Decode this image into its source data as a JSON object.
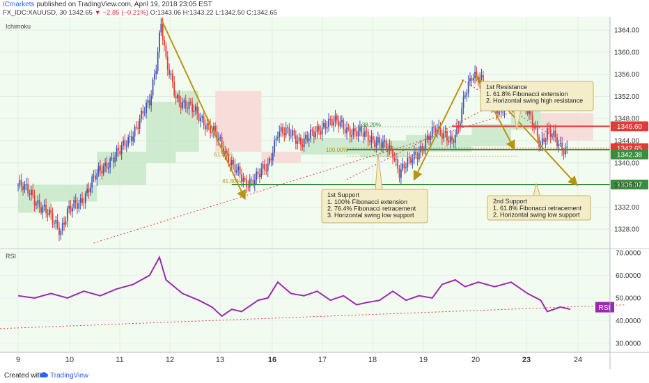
{
  "header": {
    "publisher": "ICmarkets",
    "published_text": "published on TradingView.com, April 19, 2018 23:05 EST",
    "symbol": "FX_IDC:XAUUSD, 30",
    "last": "1342.65",
    "change": "▼ −2.85 (−0.21%)",
    "ohlc": "O:1343.06 H:1343.22 L:1342.50 C:1342.65"
  },
  "footer": {
    "created_with": "Created with",
    "brand": "TradingView"
  },
  "colors": {
    "bull": "#3f51b5",
    "bear": "#e53935",
    "cloud_bull": "#c8e6c9",
    "cloud_bear": "#f8d7d5",
    "resistance": "#e53935",
    "support": "#388e3c",
    "arrow": "#b8940f",
    "rsi": "#9c27b0",
    "trend": "#e53935"
  },
  "chart_data": [
    {
      "type": "candlestick",
      "indicator": "Ichimoku",
      "x_ticks": [
        "9",
        "10",
        "11",
        "12",
        "13",
        "16",
        "17",
        "18",
        "19",
        "20",
        "23",
        "24"
      ],
      "y_ticks": [
        "1364.00",
        "1360.00",
        "1356.00",
        "1352.00",
        "1348.00",
        "1344.00",
        "1340.00",
        "1336.00",
        "1332.00",
        "1328.00"
      ],
      "ylim": [
        1324.5,
        1366.4
      ],
      "close_path": [
        [
          0,
          1336
        ],
        [
          8,
          1334.5
        ],
        [
          14,
          1332
        ],
        [
          20,
          1330
        ],
        [
          26,
          1328
        ],
        [
          30,
          1331
        ],
        [
          38,
          1333
        ],
        [
          46,
          1337
        ],
        [
          54,
          1340
        ],
        [
          62,
          1342
        ],
        [
          72,
          1346.5
        ],
        [
          80,
          1351
        ],
        [
          84,
          1358
        ],
        [
          87,
          1365.5
        ],
        [
          90,
          1358
        ],
        [
          96,
          1352
        ],
        [
          104,
          1350
        ],
        [
          112,
          1348
        ],
        [
          120,
          1345
        ],
        [
          128,
          1341
        ],
        [
          134,
          1338
        ],
        [
          138,
          1336
        ],
        [
          142,
          1337
        ],
        [
          146,
          1338
        ],
        [
          152,
          1339
        ],
        [
          158,
          1346
        ],
        [
          166,
          1345
        ],
        [
          172,
          1344
        ],
        [
          180,
          1345
        ],
        [
          188,
          1347.5
        ],
        [
          196,
          1347
        ],
        [
          204,
          1345.5
        ],
        [
          212,
          1345
        ],
        [
          218,
          1344
        ],
        [
          222,
          1343
        ],
        [
          228,
          1342
        ],
        [
          232,
          1338.5
        ],
        [
          238,
          1340
        ],
        [
          246,
          1343
        ],
        [
          254,
          1346
        ],
        [
          260,
          1345.5
        ],
        [
          264,
          1343.5
        ],
        [
          268,
          1346
        ],
        [
          272,
          1353
        ],
        [
          276,
          1356
        ],
        [
          282,
          1354.5
        ],
        [
          288,
          1351
        ],
        [
          294,
          1349
        ],
        [
          300,
          1352.5
        ],
        [
          306,
          1353
        ],
        [
          310,
          1349
        ],
        [
          314,
          1346.5
        ],
        [
          318,
          1343.5
        ],
        [
          322,
          1345.5
        ],
        [
          326,
          1344.5
        ],
        [
          330,
          1343
        ],
        [
          334,
          1342.65
        ]
      ],
      "cloud_segments": [
        {
          "sentiment": "bull",
          "x0": 0,
          "x1": 20,
          "top": 1336,
          "bot": 1331
        },
        {
          "sentiment": "bull",
          "x0": 20,
          "x1": 48,
          "top": 1336,
          "bot": 1333
        },
        {
          "sentiment": "bull",
          "x0": 48,
          "x1": 78,
          "top": 1342,
          "bot": 1336
        },
        {
          "sentiment": "bull",
          "x0": 78,
          "x1": 96,
          "top": 1351,
          "bot": 1340
        },
        {
          "sentiment": "bull",
          "x0": 96,
          "x1": 110,
          "top": 1353,
          "bot": 1342
        },
        {
          "sentiment": "bear",
          "x0": 120,
          "x1": 148,
          "top": 1353,
          "bot": 1342
        },
        {
          "sentiment": "bear",
          "x0": 148,
          "x1": 172,
          "top": 1342,
          "bot": 1340
        },
        {
          "sentiment": "bull",
          "x0": 172,
          "x1": 208,
          "top": 1344.5,
          "bot": 1341.5
        },
        {
          "sentiment": "bull",
          "x0": 208,
          "x1": 236,
          "top": 1344,
          "bot": 1341
        },
        {
          "sentiment": "bull",
          "x0": 236,
          "x1": 276,
          "top": 1345,
          "bot": 1342
        },
        {
          "sentiment": "bull",
          "x0": 276,
          "x1": 300,
          "top": 1347,
          "bot": 1343
        },
        {
          "sentiment": "bull",
          "x0": 300,
          "x1": 318,
          "top": 1351,
          "bot": 1346
        },
        {
          "sentiment": "bear",
          "x0": 318,
          "x1": 350,
          "top": 1349,
          "bot": 1344
        }
      ],
      "horizontal_levels": [
        {
          "price": 1346.6,
          "label": "1346.60",
          "role": "resistance"
        },
        {
          "price": 1342.65,
          "label": "1342.65",
          "role": "last"
        },
        {
          "price": 1342.38,
          "label": "1342.38",
          "role": "support"
        },
        {
          "price": 1336.07,
          "label": "1336.07",
          "role": "support"
        }
      ],
      "fib_labels": [
        {
          "text": "61.80%",
          "x": 125,
          "y": 1341.2
        },
        {
          "text": "61.80%",
          "x": 130,
          "y": 1336.3
        },
        {
          "text": "100.00%",
          "x": 194,
          "y": 1342.0
        },
        {
          "text": "38.20%",
          "x": 215,
          "y": 1346.5
        }
      ],
      "arrows": [
        {
          "from": [
            87,
            1366
          ],
          "to": [
            138,
            1333.5
          ]
        },
        {
          "from": [
            271,
            1355
          ],
          "to": [
            241,
            1337
          ]
        },
        {
          "from": [
            278,
            1356
          ],
          "to": [
            302,
            1342.5
          ]
        },
        {
          "from": [
            278,
            1356
          ],
          "to": [
            340,
            1336
          ]
        }
      ],
      "trend_lines": [
        {
          "from": [
            46,
            1325.5
          ],
          "to": [
            310,
            1350
          ]
        },
        {
          "from": [
            200,
            1337
          ],
          "to": [
            296,
            1351.5
          ]
        },
        {
          "from": [
            270,
            1355
          ],
          "to": [
            330,
            1344
          ]
        }
      ],
      "annotations": [
        {
          "title": "1st Resistance",
          "lines": [
            "1. 61.8% Fibonacci extension",
            "2. Horizontal swing high resistance"
          ]
        },
        {
          "title": "1st Support",
          "lines": [
            "1. 100% Fibonacci extension",
            "2. 76.4% Fibonacci retracement",
            "3. Horizontal swing low support"
          ]
        },
        {
          "title": "2nd Support",
          "lines": [
            "1. 61.8% Fibonacci retracement",
            "2. Horizontal swing low support"
          ]
        }
      ]
    },
    {
      "type": "line",
      "indicator": "RSI",
      "label": "RSI",
      "y_ticks": [
        "70.0000",
        "60.0000",
        "50.0000",
        "40.0000",
        "30.0000"
      ],
      "ylim": [
        26,
        71.5
      ],
      "path": [
        [
          0,
          51
        ],
        [
          10,
          50
        ],
        [
          20,
          52
        ],
        [
          30,
          50
        ],
        [
          40,
          53
        ],
        [
          50,
          51
        ],
        [
          60,
          54
        ],
        [
          70,
          56
        ],
        [
          80,
          60
        ],
        [
          86,
          68
        ],
        [
          90,
          58
        ],
        [
          100,
          52
        ],
        [
          110,
          49
        ],
        [
          118,
          46
        ],
        [
          124,
          42
        ],
        [
          130,
          45
        ],
        [
          136,
          44
        ],
        [
          140,
          46
        ],
        [
          146,
          49
        ],
        [
          152,
          50
        ],
        [
          158,
          57
        ],
        [
          166,
          52
        ],
        [
          174,
          51
        ],
        [
          182,
          53
        ],
        [
          190,
          49
        ],
        [
          198,
          51
        ],
        [
          206,
          47
        ],
        [
          212,
          48
        ],
        [
          220,
          49
        ],
        [
          228,
          53
        ],
        [
          236,
          49
        ],
        [
          244,
          51
        ],
        [
          252,
          50
        ],
        [
          258,
          56
        ],
        [
          266,
          58
        ],
        [
          272,
          55
        ],
        [
          280,
          57
        ],
        [
          290,
          55
        ],
        [
          300,
          57
        ],
        [
          310,
          52
        ],
        [
          318,
          49
        ],
        [
          322,
          44
        ],
        [
          330,
          46
        ],
        [
          336,
          45
        ]
      ],
      "trend_line": {
        "from": [
          0,
          36.5
        ],
        "to": [
          370,
          47
        ]
      },
      "x_ticks": [
        "9",
        "10",
        "11",
        "12",
        "13",
        "16",
        "17",
        "18",
        "19",
        "20",
        "23",
        "24"
      ]
    }
  ]
}
